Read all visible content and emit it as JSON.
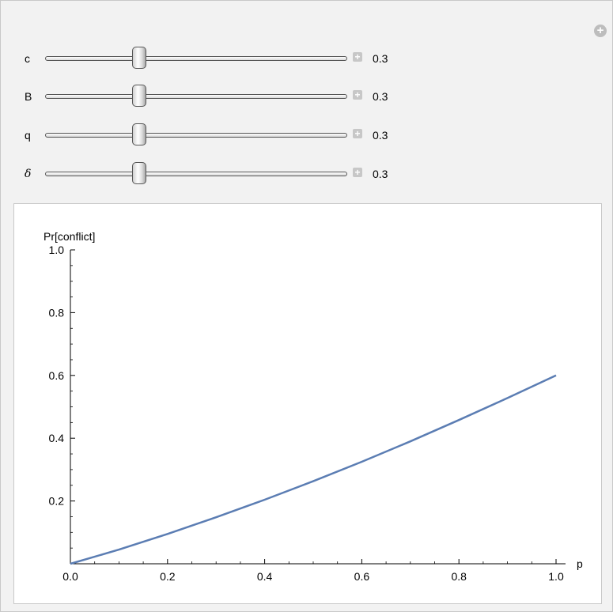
{
  "controls": [
    {
      "name": "c",
      "value": "0.3"
    },
    {
      "name": "B",
      "value": "0.3"
    },
    {
      "name": "q",
      "value": "0.3"
    },
    {
      "name": "δ",
      "value": "0.3"
    }
  ],
  "add_button_glyph": "+",
  "plus_glyph": "+",
  "colors": {
    "curve": "#5b7db3",
    "panel": "#f2f2f2",
    "plot_bg": "#ffffff"
  },
  "chart_data": {
    "type": "line",
    "title": "",
    "xlabel": "p",
    "ylabel": "Pr[conflict]",
    "xlim": [
      0,
      1
    ],
    "ylim": [
      0,
      1
    ],
    "xticks": [
      "0.0",
      "0.2",
      "0.4",
      "0.6",
      "0.8",
      "1.0"
    ],
    "yticks": [
      "0.2",
      "0.4",
      "0.6",
      "0.8",
      "1.0"
    ],
    "series": [
      {
        "x": [
          0.0,
          0.1,
          0.2,
          0.3,
          0.4,
          0.5,
          0.6,
          0.7,
          0.8,
          0.9,
          1.0
        ],
        "y": [
          0.0,
          0.045,
          0.095,
          0.148,
          0.204,
          0.263,
          0.325,
          0.39,
          0.458,
          0.528,
          0.6
        ]
      }
    ]
  }
}
